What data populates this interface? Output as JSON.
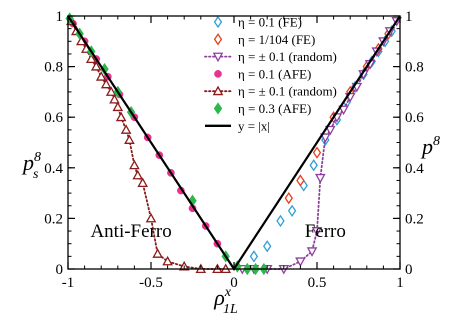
{
  "chart_data": {
    "type": "scatter",
    "xlabel": {
      "base": "ρ",
      "sup": "x",
      "sub": "1L"
    },
    "ylabel_left": {
      "base": "p",
      "sup": "8",
      "sub": "s"
    },
    "ylabel_right": {
      "base": "p",
      "sup": "8"
    },
    "xlim": [
      -1,
      1
    ],
    "ylim": [
      0,
      1
    ],
    "x_ticks": [
      -1,
      -0.5,
      0,
      0.5,
      1
    ],
    "x_tick_labels": [
      "-1",
      "-0.5",
      "0",
      "0.5",
      "1"
    ],
    "y_ticks": [
      0,
      0.2,
      0.4,
      0.6,
      0.8,
      1
    ],
    "y_tick_labels": [
      "0",
      "0.2",
      "0.4",
      "0.6",
      "0.8",
      "1"
    ],
    "y_tick_labels_right": [
      "0",
      "0.2",
      "0.4",
      "0.6",
      "0.8",
      "1"
    ],
    "legend_position": "top-center",
    "annotations": [
      {
        "text": "Anti-Ferro",
        "x": -0.62,
        "y": 0.15
      },
      {
        "text": "Ferro",
        "x": 0.55,
        "y": 0.15
      }
    ],
    "series": [
      {
        "name": "η = 0.1 (FE)",
        "marker": "diamond-open",
        "color": "#2a9fd6",
        "line": "none",
        "points": [
          [
            0.12,
            0.05
          ],
          [
            0.2,
            0.09
          ],
          [
            0.28,
            0.19
          ],
          [
            0.35,
            0.23
          ],
          [
            0.42,
            0.33
          ],
          [
            0.48,
            0.41
          ],
          [
            0.55,
            0.51
          ],
          [
            0.62,
            0.59
          ],
          [
            0.68,
            0.66
          ],
          [
            0.73,
            0.72
          ],
          [
            0.78,
            0.77
          ],
          [
            0.83,
            0.82
          ],
          [
            0.87,
            0.86
          ],
          [
            0.91,
            0.9
          ],
          [
            0.95,
            0.94
          ]
        ]
      },
      {
        "name": "η = 1/104 (FE)",
        "marker": "diamond-open",
        "color": "#e8401c",
        "line": "none",
        "points": [
          [
            0.33,
            0.28
          ],
          [
            0.4,
            0.35
          ],
          [
            0.5,
            0.46
          ],
          [
            0.6,
            0.6
          ],
          [
            0.7,
            0.7
          ],
          [
            0.8,
            0.8
          ],
          [
            0.87,
            0.87
          ],
          [
            0.93,
            0.93
          ]
        ]
      },
      {
        "name": "η = ± 0.1 (random)",
        "marker": "triangle-down-open",
        "color": "#8e3f9f",
        "line": "dotted",
        "points": [
          [
            0.05,
            0.0
          ],
          [
            0.12,
            0.0
          ],
          [
            0.2,
            0.0
          ],
          [
            0.3,
            0.0
          ],
          [
            0.4,
            0.03
          ],
          [
            0.47,
            0.07
          ],
          [
            0.5,
            0.15
          ],
          [
            0.52,
            0.36
          ],
          [
            0.55,
            0.52
          ],
          [
            0.58,
            0.55
          ],
          [
            0.62,
            0.6
          ],
          [
            0.66,
            0.63
          ],
          [
            0.7,
            0.68
          ],
          [
            0.74,
            0.72
          ],
          [
            0.78,
            0.77
          ],
          [
            0.82,
            0.81
          ],
          [
            0.86,
            0.86
          ],
          [
            0.9,
            0.9
          ],
          [
            0.94,
            0.94
          ],
          [
            0.98,
            0.98
          ]
        ]
      },
      {
        "name": "η = 0.1 (AFE)",
        "marker": "circle-filled",
        "color": "#e8338e",
        "line": "none",
        "points": [
          [
            -0.97,
            0.97
          ],
          [
            -0.9,
            0.9
          ],
          [
            -0.83,
            0.83
          ],
          [
            -0.76,
            0.76
          ],
          [
            -0.69,
            0.69
          ],
          [
            -0.6,
            0.6
          ],
          [
            -0.52,
            0.52
          ],
          [
            -0.45,
            0.45
          ],
          [
            -0.38,
            0.38
          ],
          [
            -0.32,
            0.31
          ],
          [
            -0.25,
            0.24
          ],
          [
            -0.17,
            0.17
          ],
          [
            -0.1,
            0.1
          ]
        ]
      },
      {
        "name": "η = ± 0.1 (random)",
        "marker": "triangle-up-open",
        "color": "#8b1a1a",
        "line": "dotted",
        "points": [
          [
            -0.98,
            0.98
          ],
          [
            -0.95,
            0.94
          ],
          [
            -0.92,
            0.9
          ],
          [
            -0.89,
            0.87
          ],
          [
            -0.86,
            0.83
          ],
          [
            -0.83,
            0.8
          ],
          [
            -0.8,
            0.76
          ],
          [
            -0.77,
            0.73
          ],
          [
            -0.74,
            0.7
          ],
          [
            -0.72,
            0.67
          ],
          [
            -0.7,
            0.64
          ],
          [
            -0.68,
            0.6
          ],
          [
            -0.65,
            0.55
          ],
          [
            -0.63,
            0.51
          ],
          [
            -0.6,
            0.41
          ],
          [
            -0.58,
            0.37
          ],
          [
            -0.55,
            0.34
          ],
          [
            -0.5,
            0.2
          ],
          [
            -0.46,
            0.06
          ],
          [
            -0.4,
            0.03
          ],
          [
            -0.3,
            0.01
          ],
          [
            -0.2,
            0.0
          ],
          [
            -0.1,
            0.0
          ],
          [
            -0.05,
            0.0
          ]
        ]
      },
      {
        "name": "η = 0.3 (AFE)",
        "marker": "diamond-filled",
        "color": "#2db84a",
        "line": "none",
        "points": [
          [
            -0.99,
            0.99
          ],
          [
            -0.93,
            0.93
          ],
          [
            -0.86,
            0.86
          ],
          [
            -0.78,
            0.79
          ],
          [
            -0.7,
            0.7
          ],
          [
            -0.62,
            0.62
          ],
          [
            -0.25,
            0.27
          ],
          [
            -0.05,
            0.05
          ],
          [
            0.02,
            0.01
          ],
          [
            0.08,
            0.0
          ],
          [
            0.13,
            0.0
          ],
          [
            0.18,
            0.0
          ]
        ]
      },
      {
        "name": "y = |x|",
        "marker": "none",
        "color": "#000000",
        "line": "solid",
        "points": [
          [
            -1,
            1
          ],
          [
            0,
            0
          ],
          [
            1,
            1
          ]
        ]
      }
    ]
  }
}
